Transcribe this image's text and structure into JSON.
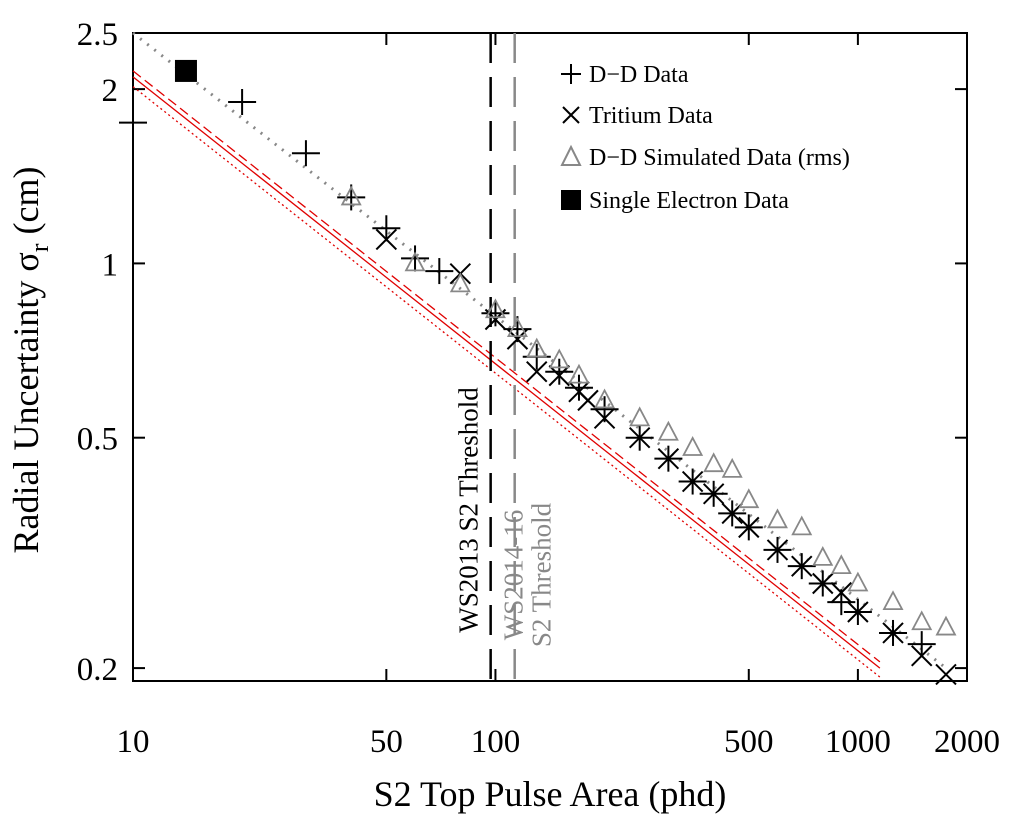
{
  "chart_data": {
    "type": "scatter",
    "xscale": "log",
    "yscale": "log",
    "xlabel": "S2 Top Pulse Area (phd)",
    "ylabel_main": "Radial Uncertainty σ",
    "ylabel_sub": "r",
    "ylabel_units": " (cm)",
    "xlim": [
      10,
      2000
    ],
    "ylim": [
      0.19,
      2.5
    ],
    "xticks": [
      10,
      50,
      100,
      500,
      1000,
      2000
    ],
    "xtick_labels": [
      "10",
      "50",
      "100",
      "500",
      "1000",
      "2000"
    ],
    "yticks": [
      0.2,
      0.5,
      1,
      2,
      2.5
    ],
    "ytick_labels": [
      "0.2",
      "0.5",
      "1",
      "2",
      "2.5"
    ],
    "legend_position": "top-right",
    "series": [
      {
        "name": "D−D Data",
        "marker": "plus",
        "color": "#000000",
        "x": [
          10,
          20,
          30,
          40,
          50,
          60,
          70,
          100,
          115,
          130,
          150,
          170,
          200,
          250,
          300,
          350,
          400,
          450,
          500,
          600,
          700,
          800,
          900,
          1000,
          1250,
          1500
        ],
        "y": [
          1.75,
          1.9,
          1.55,
          1.3,
          1.15,
          1.02,
          0.97,
          0.82,
          0.77,
          0.69,
          0.65,
          0.61,
          0.56,
          0.5,
          0.46,
          0.42,
          0.4,
          0.37,
          0.35,
          0.32,
          0.3,
          0.28,
          0.26,
          0.25,
          0.23,
          0.22
        ]
      },
      {
        "name": "Tritium Data",
        "marker": "x",
        "color": "#000000",
        "x": [
          50,
          80,
          100,
          115,
          130,
          150,
          170,
          180,
          200,
          250,
          300,
          350,
          400,
          450,
          500,
          600,
          700,
          800,
          900,
          1000,
          1250,
          1500,
          1750
        ],
        "y": [
          1.1,
          0.96,
          0.8,
          0.74,
          0.65,
          0.64,
          0.6,
          0.58,
          0.54,
          0.5,
          0.46,
          0.42,
          0.4,
          0.37,
          0.35,
          0.32,
          0.3,
          0.28,
          0.27,
          0.25,
          0.23,
          0.21,
          0.195
        ]
      },
      {
        "name": "D−D Simulated Data (rms)",
        "marker": "triangle",
        "color": "#888888",
        "x": [
          40,
          60,
          80,
          100,
          115,
          130,
          150,
          170,
          200,
          250,
          300,
          350,
          400,
          450,
          500,
          600,
          700,
          800,
          900,
          1000,
          1250,
          1500,
          1750
        ],
        "y": [
          1.3,
          1.0,
          0.92,
          0.83,
          0.77,
          0.71,
          0.68,
          0.64,
          0.58,
          0.54,
          0.51,
          0.48,
          0.45,
          0.44,
          0.39,
          0.36,
          0.35,
          0.31,
          0.3,
          0.28,
          0.26,
          0.24,
          0.235
        ]
      },
      {
        "name": "Single Electron Data",
        "marker": "square",
        "color": "#000000",
        "x": [
          14
        ],
        "y": [
          2.15
        ]
      }
    ],
    "fit_lines": [
      {
        "name": "dotted-trend",
        "color": "#888888",
        "style": "dotted",
        "x": [
          10,
          1750
        ],
        "y": [
          2.5,
          0.2
        ]
      },
      {
        "name": "red-solid",
        "color": "#e00000",
        "style": "solid",
        "x": [
          10,
          1150
        ],
        "y": [
          2.1,
          0.2
        ]
      },
      {
        "name": "red-dashed",
        "color": "#e00000",
        "style": "dashed",
        "x": [
          10,
          1150
        ],
        "y": [
          2.15,
          0.205
        ]
      },
      {
        "name": "red-dotted",
        "color": "#e00000",
        "style": "dotted",
        "x": [
          10,
          1150
        ],
        "y": [
          2.02,
          0.193
        ]
      }
    ],
    "thresholds": [
      {
        "x": 97,
        "label": "WS2013 S2 Threshold",
        "color": "#000000"
      },
      {
        "x": 113,
        "label_line1": "WS2014-16",
        "label_line2": "S2 Threshold",
        "color": "#888888"
      }
    ]
  }
}
